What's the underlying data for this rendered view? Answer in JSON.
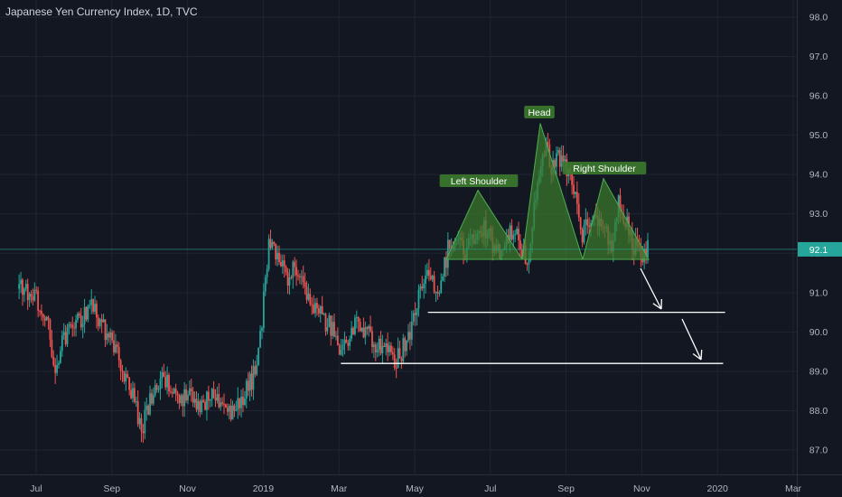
{
  "title": "Japanese Yen Currency Index, 1D, TVC",
  "chart_data": {
    "type": "candlestick",
    "title": "Japanese Yen Currency Index, 1D, TVC",
    "ylim": [
      86.4,
      98.4
    ],
    "y_ticks": [
      87.0,
      88.0,
      89.0,
      90.0,
      91.0,
      92.0,
      93.0,
      94.0,
      95.0,
      96.0,
      97.0,
      98.0
    ],
    "y_tick_labels": [
      "87.0",
      "88.0",
      "89.0",
      "90.0",
      "91.0",
      "92.0",
      "93.0",
      "94.0",
      "95.0",
      "96.0",
      "97.0",
      "98.0"
    ],
    "x_ticks": [
      "Jul",
      "Sep",
      "Nov",
      "2019",
      "Mar",
      "May",
      "Jul",
      "Sep",
      "Nov",
      "2020",
      "Mar"
    ],
    "x_tick_months": [
      0,
      2,
      4,
      6,
      8,
      10,
      12,
      14,
      16,
      18,
      20
    ],
    "x_range_months": [
      -0.45,
      20.0
    ],
    "last_price": 92.1,
    "last_price_label": "92.1",
    "colors": {
      "up": "#26a69a",
      "down": "#ef5350",
      "background": "#131722",
      "grid": "#1f2432",
      "pattern_fill": "#3c7a2c",
      "price_line": "#26a69a"
    },
    "price_path": [
      [
        -0.45,
        91.1
      ],
      [
        0.0,
        90.8
      ],
      [
        0.3,
        90.3
      ],
      [
        0.5,
        89.0
      ],
      [
        0.7,
        89.7
      ],
      [
        0.9,
        90.2
      ],
      [
        1.2,
        90.4
      ],
      [
        1.5,
        90.7
      ],
      [
        1.7,
        90.2
      ],
      [
        1.9,
        89.9
      ],
      [
        2.1,
        89.5
      ],
      [
        2.4,
        88.8
      ],
      [
        2.6,
        88.2
      ],
      [
        2.8,
        87.6
      ],
      [
        3.1,
        88.5
      ],
      [
        3.3,
        88.8
      ],
      [
        3.5,
        88.6
      ],
      [
        3.8,
        88.1
      ],
      [
        4.0,
        88.6
      ],
      [
        4.3,
        88.0
      ],
      [
        4.6,
        88.5
      ],
      [
        4.9,
        88.2
      ],
      [
        5.2,
        88.0
      ],
      [
        5.5,
        88.4
      ],
      [
        5.8,
        89.0
      ],
      [
        5.95,
        90.0
      ],
      [
        6.05,
        91.3
      ],
      [
        6.15,
        92.3
      ],
      [
        6.3,
        92.0
      ],
      [
        6.6,
        91.4
      ],
      [
        6.9,
        91.6
      ],
      [
        7.1,
        91.0
      ],
      [
        7.3,
        90.7
      ],
      [
        7.6,
        90.3
      ],
      [
        7.8,
        90.1
      ],
      [
        8.0,
        89.4
      ],
      [
        8.2,
        89.7
      ],
      [
        8.5,
        90.3
      ],
      [
        8.8,
        89.9
      ],
      [
        9.0,
        89.6
      ],
      [
        9.2,
        89.8
      ],
      [
        9.5,
        89.3
      ],
      [
        9.7,
        89.6
      ],
      [
        9.9,
        90.1
      ],
      [
        10.1,
        91.0
      ],
      [
        10.3,
        91.5
      ],
      [
        10.5,
        91.1
      ],
      [
        10.7,
        91.3
      ],
      [
        10.9,
        92.2
      ],
      [
        11.1,
        92.5
      ],
      [
        11.3,
        92.0
      ],
      [
        11.6,
        92.3
      ],
      [
        11.8,
        92.6
      ],
      [
        12.0,
        92.4
      ],
      [
        12.2,
        92.0
      ],
      [
        12.4,
        92.3
      ],
      [
        12.6,
        92.6
      ],
      [
        12.8,
        92.1
      ],
      [
        13.0,
        91.9
      ],
      [
        13.1,
        92.8
      ],
      [
        13.3,
        94.3
      ],
      [
        13.5,
        94.9
      ],
      [
        13.6,
        94.1
      ],
      [
        13.8,
        94.5
      ],
      [
        14.0,
        94.3
      ],
      [
        14.2,
        93.6
      ],
      [
        14.4,
        92.5
      ],
      [
        14.6,
        92.7
      ],
      [
        14.8,
        93.0
      ],
      [
        15.0,
        92.6
      ],
      [
        15.2,
        92.3
      ],
      [
        15.4,
        93.3
      ],
      [
        15.6,
        92.8
      ],
      [
        15.8,
        92.2
      ],
      [
        16.0,
        92.0
      ],
      [
        16.2,
        92.1
      ]
    ],
    "levels": [
      {
        "value": 90.5,
        "x_start": 10.35,
        "x_end": 18.2
      },
      {
        "value": 89.2,
        "x_start": 8.05,
        "x_end": 18.15
      }
    ],
    "annotations": [
      {
        "label": "Left Shoulder",
        "value": 93.6
      },
      {
        "label": "Head",
        "value": 95.3
      },
      {
        "label": "Right Shoulder",
        "value": 93.9
      }
    ]
  }
}
